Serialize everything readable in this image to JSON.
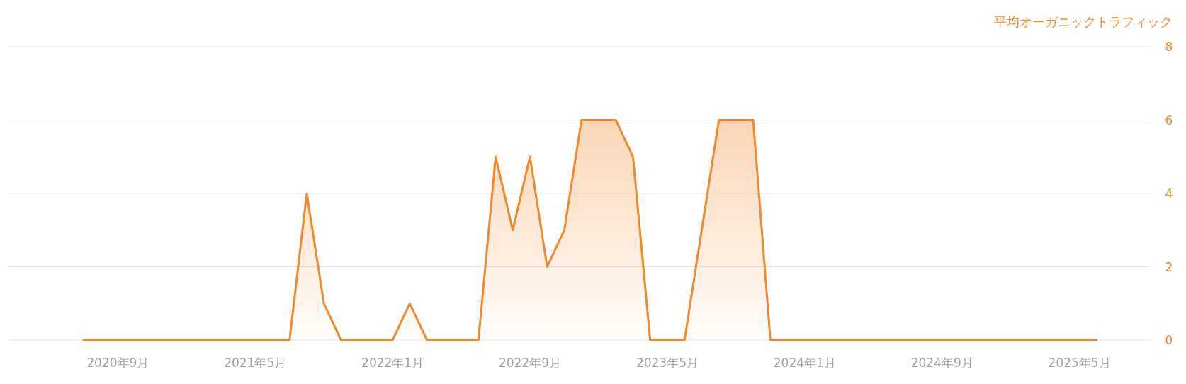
{
  "chart_data": {
    "type": "area",
    "ylabel": "平均オーガニックトラフィック",
    "x": [
      "2020-07",
      "2020-08",
      "2020-09",
      "2020-10",
      "2020-11",
      "2020-12",
      "2021-01",
      "2021-02",
      "2021-03",
      "2021-04",
      "2021-05",
      "2021-06",
      "2021-07",
      "2021-08",
      "2021-09",
      "2021-10",
      "2021-11",
      "2021-12",
      "2022-01",
      "2022-02",
      "2022-03",
      "2022-04",
      "2022-05",
      "2022-06",
      "2022-07",
      "2022-08",
      "2022-09",
      "2022-10",
      "2022-11",
      "2022-12",
      "2023-01",
      "2023-02",
      "2023-03",
      "2023-04",
      "2023-05",
      "2023-06",
      "2023-07",
      "2023-08",
      "2023-09",
      "2023-10",
      "2023-11",
      "2023-12",
      "2024-01",
      "2024-02",
      "2024-03",
      "2024-04",
      "2024-05",
      "2024-06",
      "2024-07",
      "2024-08",
      "2024-09",
      "2024-10",
      "2024-11",
      "2024-12",
      "2025-01",
      "2025-02",
      "2025-03",
      "2025-04",
      "2025-05",
      "2025-06"
    ],
    "series": [
      {
        "color": "#ef8a2e",
        "values": [
          0,
          0,
          0,
          0,
          0,
          0,
          0,
          0,
          0,
          0,
          0,
          0,
          0,
          4,
          1,
          0,
          0,
          0,
          0,
          1,
          0,
          0,
          0,
          0,
          5,
          3,
          5,
          2,
          3,
          6,
          6,
          6,
          5,
          0,
          0,
          0,
          3,
          6,
          6,
          6,
          0,
          0,
          0,
          0,
          0,
          0,
          0,
          0,
          0,
          0,
          0,
          0,
          0,
          0,
          0,
          0,
          0,
          0,
          0,
          0
        ]
      }
    ],
    "xlim": [
      "2020-02-19",
      "2025-09-04"
    ],
    "xticks": [
      {
        "value": "2020-09",
        "label": "2020年9月"
      },
      {
        "value": "2021-05",
        "label": "2021年5月"
      },
      {
        "value": "2022-01",
        "label": "2022年1月"
      },
      {
        "value": "2022-09",
        "label": "2022年9月"
      },
      {
        "value": "2023-05",
        "label": "2023年5月"
      },
      {
        "value": "2024-01",
        "label": "2024年1月"
      },
      {
        "value": "2024-09",
        "label": "2024年9月"
      },
      {
        "value": "2025-05",
        "label": "2025年5月"
      }
    ],
    "ylim": [
      0,
      8
    ],
    "yticks": [
      0,
      2,
      4,
      6,
      8
    ],
    "grid": "y",
    "marker": "none",
    "line_style": "solid"
  }
}
